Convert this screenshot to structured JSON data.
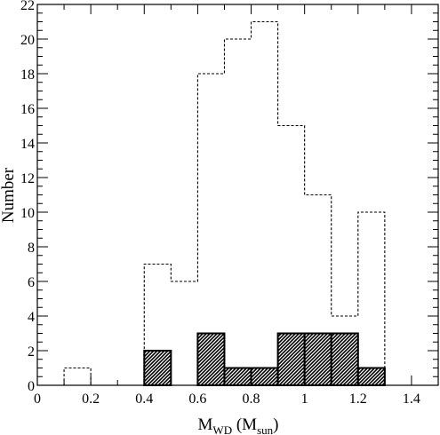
{
  "chart_data": {
    "type": "bar",
    "bin_edges": [
      0,
      0.1,
      0.2,
      0.3,
      0.4,
      0.5,
      0.6,
      0.7,
      0.8,
      0.9,
      1.0,
      1.1,
      1.2,
      1.3,
      1.4
    ],
    "series": [
      {
        "style": "dashed-outline",
        "values": [
          0,
          1,
          0,
          0,
          7,
          6,
          18,
          20,
          21,
          15,
          11,
          4,
          10,
          0
        ]
      },
      {
        "style": "hatched-filled",
        "values": [
          0,
          0,
          0,
          0,
          2,
          0,
          3,
          1,
          1,
          3,
          3,
          3,
          1,
          0
        ]
      }
    ],
    "xlim": [
      0,
      1.5
    ],
    "ylim": [
      0,
      22
    ],
    "x_ticks": [
      "0",
      "0.2",
      "0.4",
      "0.6",
      "0.8",
      "1",
      "1.2",
      "1.4"
    ],
    "y_ticks": [
      "0",
      "2",
      "4",
      "6",
      "8",
      "10",
      "12",
      "14",
      "16",
      "18",
      "20",
      "22"
    ],
    "xlabel": {
      "main": "M",
      "sub": "WD",
      "open": " (M",
      "sub2": "sun",
      "close": ")"
    },
    "ylabel": "Number",
    "grid": false
  }
}
